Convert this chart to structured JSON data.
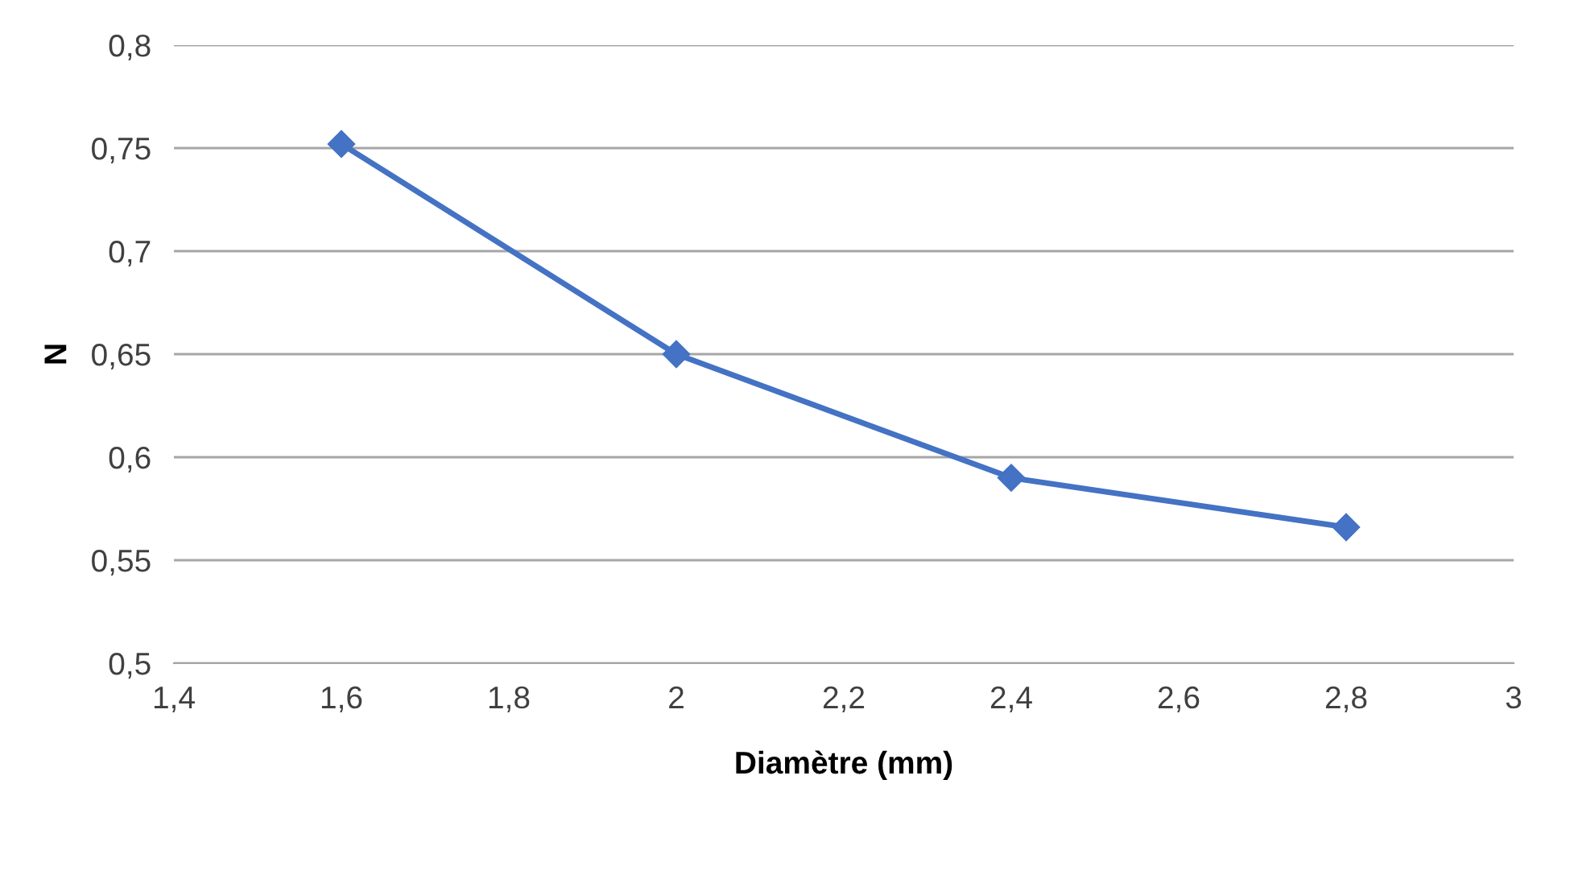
{
  "chart_data": {
    "type": "line",
    "xlabel": "Diamètre (mm)",
    "ylabel": "N",
    "x": [
      1.6,
      2.0,
      2.4,
      2.8
    ],
    "series": [
      {
        "color": "#4472c4",
        "values": [
          0.752,
          0.65,
          0.59,
          0.566
        ]
      }
    ],
    "xlim": [
      1.4,
      3.0
    ],
    "xticks": [
      {
        "value": 1.4,
        "label": "1,4"
      },
      {
        "value": 1.6,
        "label": "1,6"
      },
      {
        "value": 1.8,
        "label": "1,8"
      },
      {
        "value": 2,
        "label": "2"
      },
      {
        "value": 2.2,
        "label": "2,2"
      },
      {
        "value": 2.4,
        "label": "2,4"
      },
      {
        "value": 2.6,
        "label": "2,6"
      },
      {
        "value": 2.8,
        "label": "2,8"
      },
      {
        "value": 3,
        "label": "3"
      }
    ],
    "ylim": [
      0.5,
      0.8
    ],
    "yticks": [
      {
        "value": 0.5,
        "label": "0,5"
      },
      {
        "value": 0.55,
        "label": "0,55"
      },
      {
        "value": 0.6,
        "label": "0,6"
      },
      {
        "value": 0.65,
        "label": "0,65"
      },
      {
        "value": 0.7,
        "label": "0,7"
      },
      {
        "value": 0.75,
        "label": "0,75"
      },
      {
        "value": 0.8,
        "label": "0,8"
      }
    ],
    "grid": "y",
    "marker": "diamond",
    "line_style": "solid"
  }
}
